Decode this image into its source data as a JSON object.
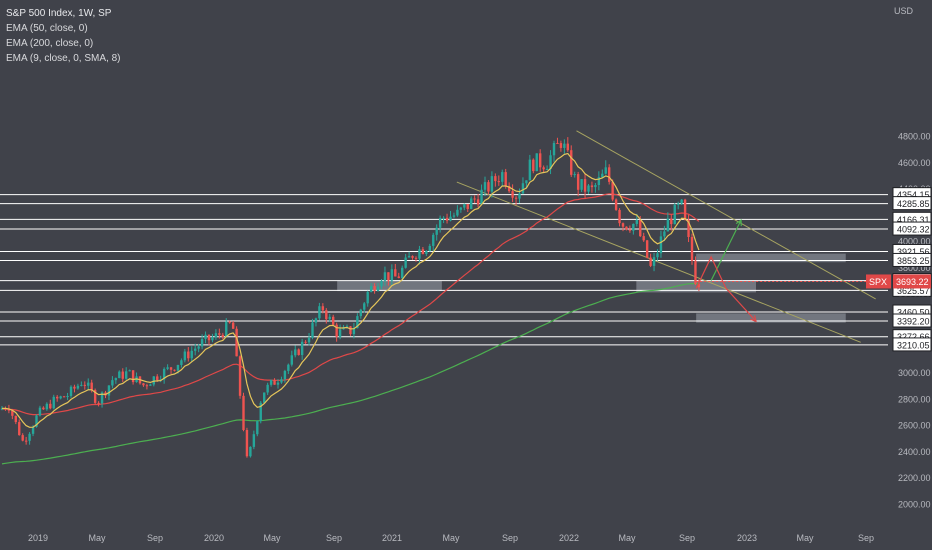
{
  "legend": {
    "title": "S&P 500 Index, 1W, SP",
    "indicators": [
      "EMA (50, close, 0)",
      "EMA (200, close, 0)",
      "EMA (9, close, 0, SMA, 8)"
    ]
  },
  "currency": "USD",
  "colors": {
    "background": "#40424a",
    "up": "#26a69a",
    "down": "#ef5350",
    "ema9": "#e6c65a",
    "ema50": "#e04848",
    "ema200": "#4caf50",
    "channel": "#a7a461",
    "levels": "#ffffff",
    "zones": "#7b7f88",
    "arrow_up": "#4caf50",
    "arrow_down": "#e04848"
  },
  "chart_data": {
    "type": "candlestick",
    "title": "S&P 500 Index, 1W, SP",
    "y_axis_ticks": [
      2000,
      2200,
      2400,
      2600,
      2800,
      3000,
      3200,
      3400,
      3600,
      3800,
      4000,
      4200,
      4400,
      4600,
      4800
    ],
    "y_axis_tick_labels": [
      "2000.00",
      "2200.00",
      "2400.00",
      "2600.00",
      "2800.00",
      "3000.00",
      "3200.00",
      "3400.00",
      "3600.00",
      "3800.00",
      "4000.00",
      "4200.00",
      "4400.00",
      "4600.00",
      "4800.00"
    ],
    "x_axis_labels": [
      "2019",
      "May",
      "Sep",
      "2020",
      "May",
      "Sep",
      "2021",
      "May",
      "Sep",
      "2022",
      "May",
      "Sep",
      "2023",
      "May",
      "Sep"
    ],
    "horizontal_levels": [
      4354.15,
      4285.85,
      4166.31,
      4092.32,
      3921.56,
      3853.25,
      3699.57,
      3625.57,
      3460.5,
      3392.2,
      3272.66,
      3210.05
    ],
    "horizontal_level_labels": [
      "4354.15",
      "4285.85",
      "4166.31",
      "4092.32",
      "3921.56",
      "3853.25",
      "3699.57",
      "3625.57",
      "3460.50",
      "3392.20",
      "3272.66",
      "3210.05"
    ],
    "current_price": {
      "symbol": "SPX",
      "value": 3693.22,
      "label": "3693.22"
    },
    "zones": [
      {
        "from_date": "2020-09",
        "to_date": "2021-04",
        "low": 3620,
        "high": 3700
      },
      {
        "from_date": "2022-05",
        "to_date": "2023-01",
        "low": 3610,
        "high": 3700
      },
      {
        "from_date": "2022-09",
        "to_date": "2023-07",
        "low": 3840,
        "high": 3905
      },
      {
        "from_date": "2022-09",
        "to_date": "2023-07",
        "low": 3380,
        "high": 3450
      }
    ],
    "channel_lines": [
      {
        "from": [
          "2022-01",
          4840
        ],
        "to": [
          "2023-09",
          3560
        ]
      },
      {
        "from": [
          "2021-05",
          4450
        ],
        "to": [
          "2023-08",
          3230
        ]
      }
    ],
    "projection_arrows": [
      {
        "color": "green",
        "points": [
          [
            "2022-10",
            3700
          ],
          [
            "2022-12",
            4160
          ]
        ]
      },
      {
        "color": "red",
        "points": [
          [
            "2022-09",
            3640
          ],
          [
            "2022-10",
            3880
          ],
          [
            "2022-11",
            3640
          ],
          [
            "2023-01",
            3390
          ]
        ]
      }
    ],
    "weekly_closes_approx": [
      [
        "2018-10",
        2680
      ],
      [
        "2018-11",
        2760
      ],
      [
        "2018-12",
        2470
      ],
      [
        "2019-01",
        2680
      ],
      [
        "2019-02",
        2780
      ],
      [
        "2019-03",
        2830
      ],
      [
        "2019-04",
        2940
      ],
      [
        "2019-05",
        2780
      ],
      [
        "2019-06",
        2950
      ],
      [
        "2019-07",
        3000
      ],
      [
        "2019-08",
        2900
      ],
      [
        "2019-09",
        2980
      ],
      [
        "2019-10",
        3040
      ],
      [
        "2019-11",
        3140
      ],
      [
        "2019-12",
        3230
      ],
      [
        "2020-01",
        3280
      ],
      [
        "2020-02",
        3380
      ],
      [
        "2020-03",
        2300
      ],
      [
        "2020-04",
        2850
      ],
      [
        "2020-05",
        2950
      ],
      [
        "2020-06",
        3100
      ],
      [
        "2020-07",
        3270
      ],
      [
        "2020-08",
        3500
      ],
      [
        "2020-09",
        3300
      ],
      [
        "2020-10",
        3320
      ],
      [
        "2020-11",
        3600
      ],
      [
        "2020-12",
        3750
      ],
      [
        "2021-01",
        3720
      ],
      [
        "2021-02",
        3900
      ],
      [
        "2021-03",
        3970
      ],
      [
        "2021-04",
        4180
      ],
      [
        "2021-05",
        4200
      ],
      [
        "2021-06",
        4300
      ],
      [
        "2021-07",
        4400
      ],
      [
        "2021-08",
        4520
      ],
      [
        "2021-09",
        4350
      ],
      [
        "2021-10",
        4600
      ],
      [
        "2021-11",
        4600
      ],
      [
        "2021-12",
        4770
      ],
      [
        "2022-01",
        4430
      ],
      [
        "2022-02",
        4380
      ],
      [
        "2022-03",
        4530
      ],
      [
        "2022-04",
        4130
      ],
      [
        "2022-05",
        4130
      ],
      [
        "2022-06",
        3780
      ],
      [
        "2022-07",
        4130
      ],
      [
        "2022-08",
        4280
      ],
      [
        "2022-09",
        3690
      ]
    ]
  }
}
